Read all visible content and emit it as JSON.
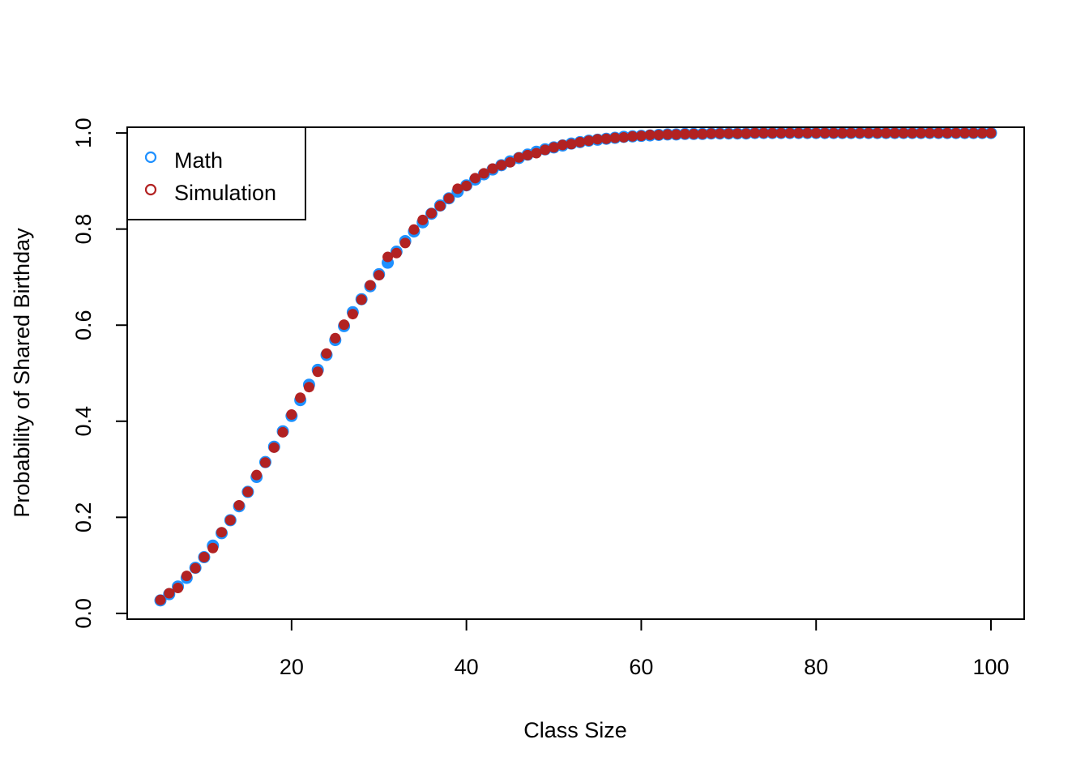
{
  "chart_data": {
    "type": "scatter",
    "title": "",
    "xlabel": "Class Size",
    "ylabel": "Probability of Shared Birthday",
    "xlim": [
      1.2,
      103.8
    ],
    "ylim": [
      -0.012,
      1.012
    ],
    "xticks": [
      20,
      40,
      60,
      80,
      100
    ],
    "yticks": [
      0.0,
      0.2,
      0.4,
      0.6,
      0.8,
      1.0
    ],
    "xtick_labels": [
      "20",
      "40",
      "60",
      "80",
      "100"
    ],
    "ytick_labels": [
      "0.0",
      "0.2",
      "0.4",
      "0.6",
      "0.8",
      "1.0"
    ],
    "grid": false,
    "legend_position": "top-left",
    "x": [
      5,
      6,
      7,
      8,
      9,
      10,
      11,
      12,
      13,
      14,
      15,
      16,
      17,
      18,
      19,
      20,
      21,
      22,
      23,
      24,
      25,
      26,
      27,
      28,
      29,
      30,
      31,
      32,
      33,
      34,
      35,
      36,
      37,
      38,
      39,
      40,
      41,
      42,
      43,
      44,
      45,
      46,
      47,
      48,
      49,
      50,
      51,
      52,
      53,
      54,
      55,
      56,
      57,
      58,
      59,
      60,
      61,
      62,
      63,
      64,
      65,
      66,
      67,
      68,
      69,
      70,
      71,
      72,
      73,
      74,
      75,
      76,
      77,
      78,
      79,
      80,
      81,
      82,
      83,
      84,
      85,
      86,
      87,
      88,
      89,
      90,
      91,
      92,
      93,
      94,
      95,
      96,
      97,
      98,
      99,
      100
    ],
    "series": [
      {
        "name": "Math",
        "color": "#1E90FF",
        "values": [
          0.027,
          0.04,
          0.056,
          0.074,
          0.095,
          0.117,
          0.141,
          0.167,
          0.194,
          0.223,
          0.253,
          0.284,
          0.315,
          0.347,
          0.379,
          0.411,
          0.444,
          0.476,
          0.507,
          0.538,
          0.569,
          0.598,
          0.627,
          0.654,
          0.681,
          0.706,
          0.73,
          0.753,
          0.775,
          0.795,
          0.814,
          0.832,
          0.849,
          0.864,
          0.878,
          0.891,
          0.903,
          0.914,
          0.924,
          0.933,
          0.941,
          0.948,
          0.955,
          0.961,
          0.966,
          0.97,
          0.974,
          0.978,
          0.981,
          0.984,
          0.986,
          0.988,
          0.99,
          0.992,
          0.993,
          0.994,
          0.995,
          0.996,
          0.997,
          0.997,
          0.998,
          0.998,
          0.998,
          0.999,
          0.999,
          0.999,
          0.999,
          0.999,
          1.0,
          1.0,
          1.0,
          1.0,
          1.0,
          1.0,
          1.0,
          1.0,
          1.0,
          1.0,
          1.0,
          1.0,
          1.0,
          1.0,
          1.0,
          1.0,
          1.0,
          1.0,
          1.0,
          1.0,
          1.0,
          1.0,
          1.0,
          1.0,
          1.0,
          1.0,
          1.0,
          1.0
        ]
      },
      {
        "name": "Simulation",
        "color": "#B22222",
        "values": [
          0.028,
          0.042,
          0.053,
          0.078,
          0.094,
          0.117,
          0.136,
          0.169,
          0.194,
          0.225,
          0.253,
          0.288,
          0.314,
          0.345,
          0.377,
          0.414,
          0.449,
          0.471,
          0.503,
          0.541,
          0.573,
          0.601,
          0.623,
          0.653,
          0.683,
          0.704,
          0.742,
          0.75,
          0.771,
          0.799,
          0.819,
          0.833,
          0.848,
          0.864,
          0.884,
          0.89,
          0.906,
          0.916,
          0.926,
          0.933,
          0.939,
          0.949,
          0.954,
          0.958,
          0.965,
          0.97,
          0.975,
          0.977,
          0.981,
          0.984,
          0.987,
          0.988,
          0.99,
          0.991,
          0.993,
          0.994,
          0.996,
          0.996,
          0.997,
          0.997,
          0.998,
          0.998,
          0.998,
          0.999,
          0.999,
          0.999,
          0.999,
          0.999,
          1.0,
          1.0,
          1.0,
          1.0,
          1.0,
          1.0,
          1.0,
          1.0,
          1.0,
          1.0,
          1.0,
          1.0,
          1.0,
          1.0,
          1.0,
          1.0,
          1.0,
          1.0,
          1.0,
          1.0,
          1.0,
          1.0,
          1.0,
          1.0,
          1.0,
          1.0,
          1.0,
          1.0
        ]
      }
    ]
  }
}
